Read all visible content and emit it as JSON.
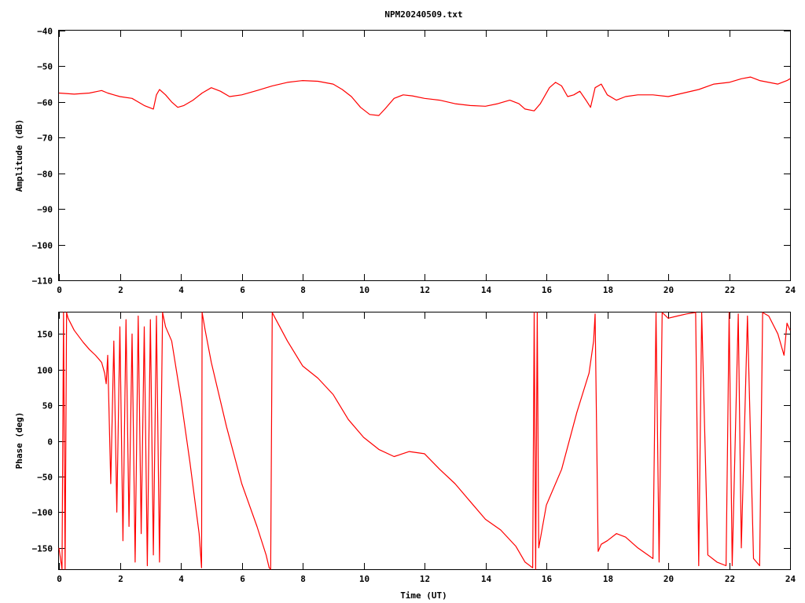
{
  "chart_data": [
    {
      "type": "line",
      "title": "NPM20240509.txt",
      "xlabel": "",
      "ylabel": "Amplitude (dB)",
      "xlim": [
        0,
        24
      ],
      "ylim": [
        -110,
        -40
      ],
      "xticks": [
        "0",
        "2",
        "4",
        "6",
        "8",
        "10",
        "12",
        "14",
        "16",
        "18",
        "20",
        "22",
        "24"
      ],
      "yticks": [
        "-40",
        "-50",
        "-60",
        "-70",
        "-80",
        "-90",
        "-100",
        "-110"
      ],
      "grid": false,
      "color": "#ff0000",
      "series": [
        {
          "x": [
            0,
            0.5,
            1.0,
            1.4,
            1.6,
            1.8,
            2.0,
            2.4,
            2.8,
            3.1,
            3.2,
            3.3,
            3.5,
            3.7,
            3.9,
            4.1,
            4.4,
            4.7,
            5.0,
            5.3,
            5.6,
            6.0,
            6.5,
            7.0,
            7.5,
            8.0,
            8.5,
            9.0,
            9.3,
            9.6,
            9.9,
            10.2,
            10.5,
            10.7,
            11.0,
            11.3,
            11.6,
            12.0,
            12.5,
            13.0,
            13.5,
            14.0,
            14.4,
            14.8,
            15.1,
            15.3,
            15.6,
            15.8,
            16.1,
            16.3,
            16.5,
            16.7,
            16.9,
            17.1,
            17.3,
            17.45,
            17.6,
            17.8,
            18.0,
            18.3,
            18.6,
            19.0,
            19.5,
            20.0,
            20.5,
            21.0,
            21.5,
            22.0,
            22.4,
            22.7,
            23.0,
            23.3,
            23.6,
            23.9,
            24.0
          ],
          "y": [
            -57.5,
            -57.8,
            -57.5,
            -56.8,
            -57.5,
            -58.0,
            -58.5,
            -59.0,
            -61.0,
            -62.0,
            -58.0,
            -56.5,
            -58.0,
            -60.0,
            -61.5,
            -61.0,
            -59.5,
            -57.5,
            -56.0,
            -57.0,
            -58.5,
            -58.0,
            -56.8,
            -55.5,
            -54.5,
            -54.0,
            -54.2,
            -55.0,
            -56.5,
            -58.5,
            -61.5,
            -63.5,
            -63.8,
            -62.0,
            -59.0,
            -58.0,
            -58.3,
            -59.0,
            -59.5,
            -60.5,
            -61.0,
            -61.2,
            -60.5,
            -59.5,
            -60.5,
            -62.0,
            -62.5,
            -60.5,
            -56.0,
            -54.5,
            -55.5,
            -58.5,
            -58.0,
            -57.0,
            -59.5,
            -61.5,
            -56.0,
            -55.0,
            -58.0,
            -59.5,
            -58.5,
            -58.0,
            -58.0,
            -58.5,
            -57.5,
            -56.5,
            -55.0,
            -54.5,
            -53.5,
            -53.0,
            -54.0,
            -54.5,
            -55.0,
            -54.0,
            -53.5
          ]
        }
      ]
    },
    {
      "type": "line",
      "title": "",
      "xlabel": "Time (UT)",
      "ylabel": "Phase (deg)",
      "xlim": [
        0,
        24
      ],
      "ylim": [
        -180,
        180
      ],
      "xticks": [
        "0",
        "2",
        "4",
        "6",
        "8",
        "10",
        "12",
        "14",
        "16",
        "18",
        "20",
        "22",
        "24"
      ],
      "yticks": [
        "150",
        "100",
        "50",
        "0",
        "-50",
        "-100",
        "-150"
      ],
      "grid": false,
      "color": "#ff0000",
      "series": [
        {
          "x": [
            0,
            0.1,
            0.15,
            0.2,
            0.25,
            0.3,
            0.5,
            0.8,
            1.0,
            1.2,
            1.4,
            1.5,
            1.55,
            1.6,
            1.7,
            1.8,
            1.9,
            2.0,
            2.1,
            2.2,
            2.3,
            2.4,
            2.5,
            2.6,
            2.7,
            2.8,
            2.9,
            3.0,
            3.1,
            3.2,
            3.3,
            3.4,
            3.5,
            3.7,
            4.0,
            4.3,
            4.6,
            4.68,
            4.7,
            4.8,
            5.0,
            5.5,
            6.0,
            6.5,
            6.8,
            6.9,
            6.95,
            7.0,
            7.1,
            7.5,
            8.0,
            8.5,
            9.0,
            9.5,
            10.0,
            10.5,
            11.0,
            11.5,
            12.0,
            12.5,
            13.0,
            13.5,
            14.0,
            14.5,
            15.0,
            15.3,
            15.55,
            15.6,
            15.65,
            15.7,
            15.75,
            16.0,
            16.5,
            17.0,
            17.4,
            17.55,
            17.6,
            17.7,
            17.8,
            18.0,
            18.3,
            18.6,
            19.0,
            19.5,
            19.6,
            19.7,
            19.8,
            20.0,
            20.3,
            20.6,
            20.9,
            21.0,
            21.1,
            21.3,
            21.6,
            21.9,
            22.0,
            22.1,
            22.3,
            22.4,
            22.6,
            22.8,
            23.0,
            23.1,
            23.3,
            23.6,
            23.8,
            23.9,
            24.0
          ],
          "y": [
            -150,
            -180,
            180,
            -180,
            180,
            172,
            155,
            138,
            128,
            120,
            110,
            95,
            80,
            120,
            -60,
            140,
            -100,
            160,
            -140,
            170,
            -120,
            150,
            -170,
            175,
            -130,
            160,
            -175,
            170,
            -160,
            175,
            -170,
            180,
            160,
            140,
            60,
            -30,
            -130,
            -178,
            180,
            155,
            110,
            20,
            -60,
            -120,
            -160,
            -178,
            -180,
            180,
            172,
            140,
            105,
            88,
            65,
            30,
            5,
            -12,
            -22,
            -15,
            -18,
            -40,
            -60,
            -85,
            -110,
            -125,
            -148,
            -170,
            -178,
            180,
            -180,
            180,
            -150,
            -90,
            -40,
            40,
            95,
            140,
            178,
            -155,
            -145,
            -140,
            -130,
            -135,
            -150,
            -165,
            180,
            -170,
            180,
            172,
            175,
            178,
            180,
            -175,
            180,
            -160,
            -170,
            -175,
            180,
            -175,
            178,
            -150,
            175,
            -165,
            -175,
            180,
            175,
            150,
            120,
            165,
            155
          ]
        }
      ]
    }
  ]
}
